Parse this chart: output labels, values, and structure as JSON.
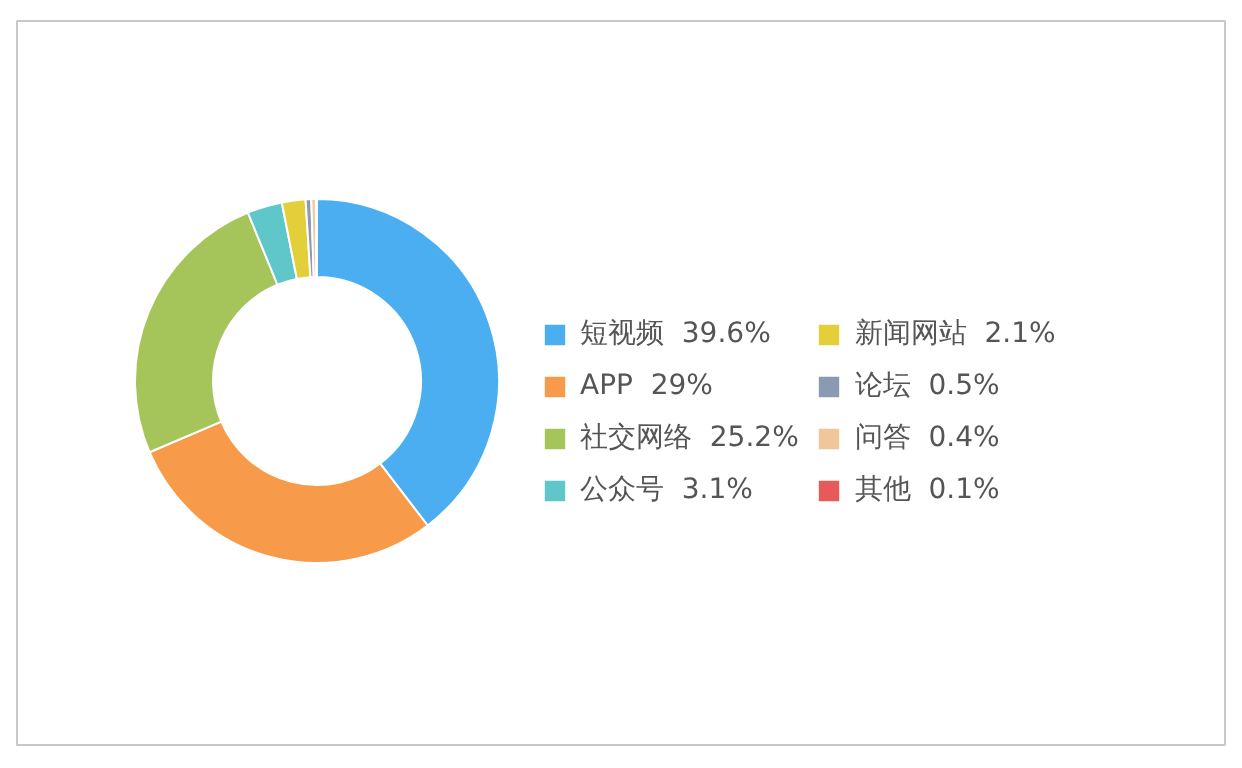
{
  "chart_data": {
    "type": "donut",
    "categories": [
      "短视频",
      "APP",
      "社交网络",
      "公众号",
      "新闻网站",
      "论坛",
      "问答",
      "其他"
    ],
    "values": [
      39.6,
      29,
      25.2,
      3.1,
      2.1,
      0.5,
      0.4,
      0.1
    ],
    "value_labels": [
      "39.6%",
      "29%",
      "25.2%",
      "3.1%",
      "2.1%",
      "0.5%",
      "0.4%",
      "0.1%"
    ],
    "colors": [
      "#4aaef0",
      "#f79a4a",
      "#a5c45a",
      "#5fc6c9",
      "#e3cf3a",
      "#8a9ab3",
      "#f0c79a",
      "#e85a5a"
    ],
    "legend": "right"
  }
}
